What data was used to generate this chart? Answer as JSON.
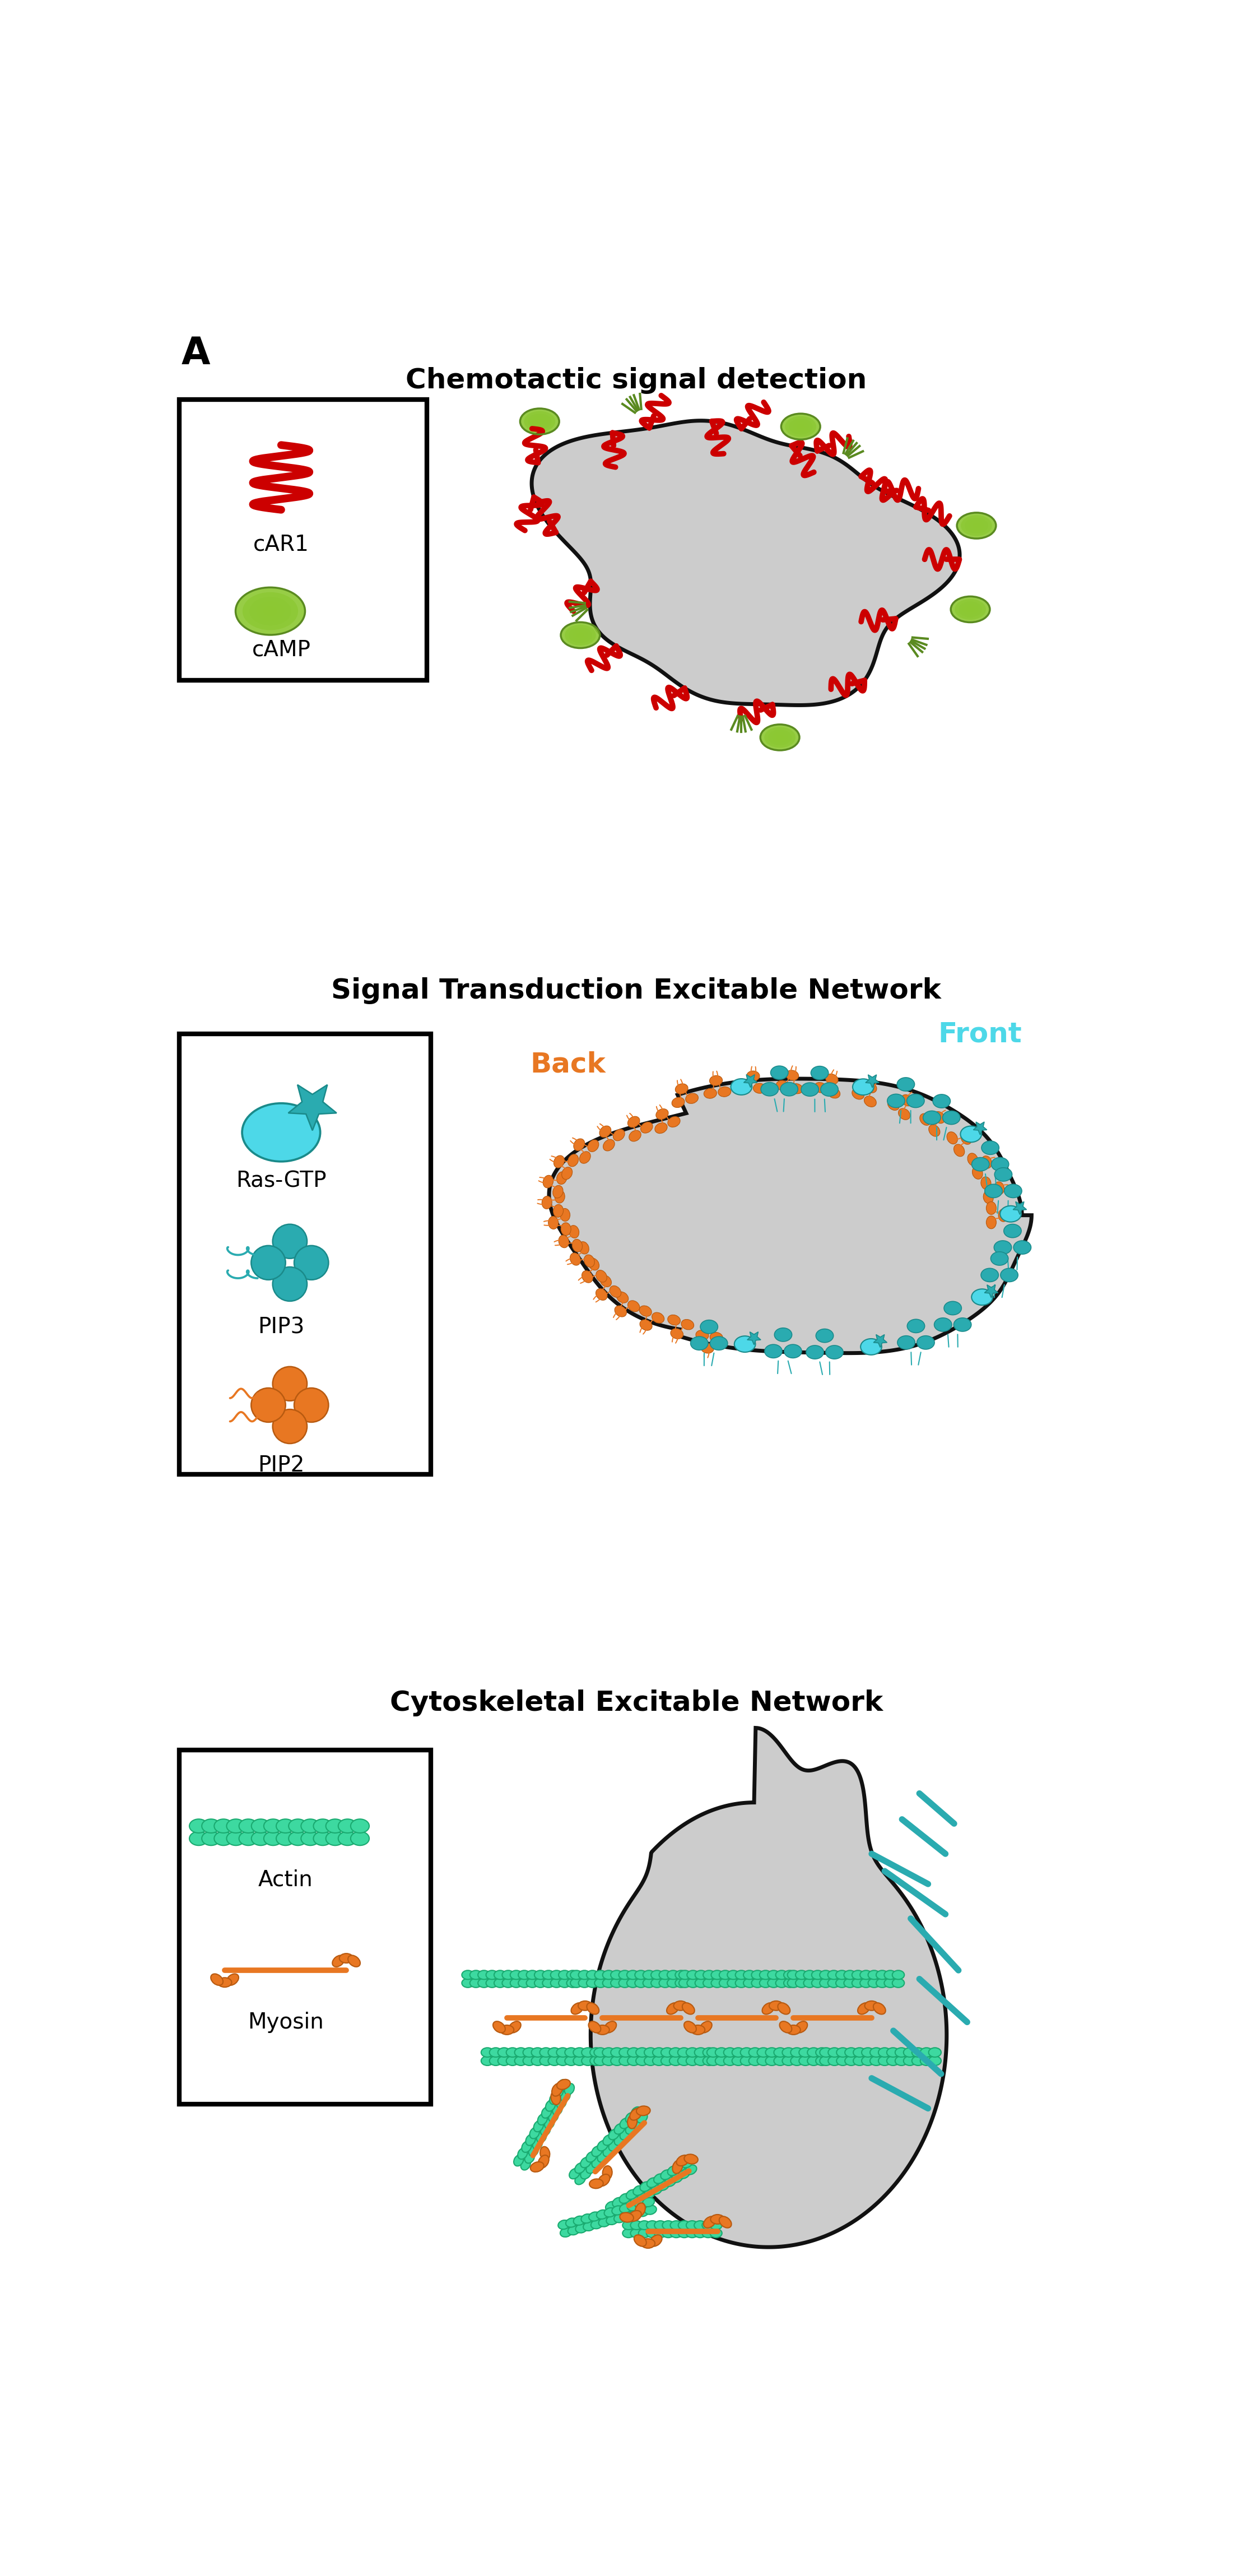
{
  "title_A": "A",
  "section1_title": "Chemotactic signal detection",
  "section2_title": "Signal Transduction Excitable Network",
  "section3_title": "Cytoskeletal Excitable Network",
  "front_label": "Front",
  "back_label": "Back",
  "red_color": "#CC0000",
  "dark_red": "#AA0000",
  "green_fill": "#8CC832",
  "green_dark": "#5A8A20",
  "teal_light": "#4DD8E8",
  "teal_mid": "#2AABB0",
  "teal_dark": "#1A8A8A",
  "orange_color": "#E87722",
  "orange_dark": "#B85A10",
  "actin_color": "#3DD9A0",
  "actin_dark": "#1AAA70",
  "cell_fill": "#CCCCCC",
  "cell_outline": "#111111",
  "bg_color": "#FFFFFF",
  "A_fontsize": 48,
  "section_fontsize": 36,
  "legend_label_fontsize": 28,
  "front_back_fontsize": 36
}
